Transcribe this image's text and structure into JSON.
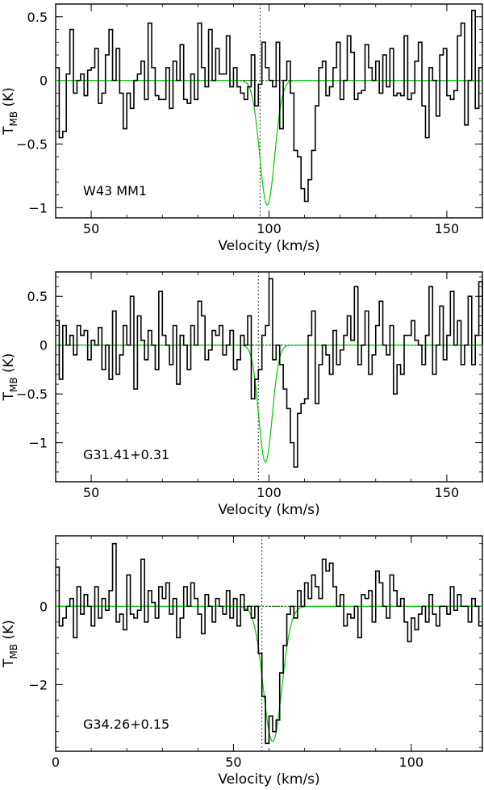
{
  "chart_data": [
    {
      "type": "line",
      "source": "W43 MM1",
      "xlabel": "Velocity (km/s)",
      "ylabel": "T_MB (K)",
      "ylabel_main": "T",
      "ylabel_sub": "MB",
      "ylabel_unit": "(K)",
      "xlim": [
        40,
        160
      ],
      "ylim": [
        -1.08,
        0.6
      ],
      "xticks": [
        50,
        100,
        150
      ],
      "yticks": [
        -1,
        -0.5,
        0,
        0.5
      ],
      "xtick_labels": [
        "50",
        "100",
        "150"
      ],
      "ytick_labels": [
        "−1",
        "−0.5",
        "0",
        "0.5"
      ],
      "vline": 97.5,
      "fit": {
        "amp": -0.98,
        "center": 99.5,
        "sigma": 2.1
      },
      "series": [
        {
          "name": "spectrum",
          "style": "steps",
          "x0": 40.5,
          "dx": 1.0,
          "values": [
            0.1,
            -0.45,
            -0.4,
            0.05,
            0.4,
            -0.1,
            0.0,
            0.05,
            -0.12,
            0.08,
            0.1,
            0.25,
            -0.18,
            -0.1,
            0.2,
            0.4,
            0.0,
            0.25,
            -0.1,
            -0.38,
            -0.1,
            -0.22,
            0.0,
            0.05,
            0.15,
            -0.15,
            0.45,
            0.1,
            -0.12,
            -0.15,
            -0.15,
            0.1,
            -0.22,
            0.15,
            0.0,
            0.28,
            -0.15,
            -0.18,
            0.05,
            -0.15,
            0.45,
            0.1,
            -0.05,
            0.4,
            0.0,
            0.25,
            0.05,
            0.05,
            0.35,
            -0.05,
            0.1,
            -0.05,
            -0.1,
            -0.15,
            -0.05,
            0.2,
            -0.2,
            -0.03,
            0.3,
            0.1,
            0.0,
            -0.05,
            0.3,
            -0.38,
            0.0,
            0.15,
            -0.1,
            -0.55,
            -0.6,
            -0.85,
            -0.95,
            -0.78,
            -0.55,
            -0.2,
            0.1,
            0.15,
            -0.12,
            -0.05,
            0.1,
            0.3,
            -0.15,
            0.0,
            0.35,
            0.22,
            -0.15,
            -0.1,
            -0.08,
            0.28,
            0.1,
            0.0,
            0.15,
            -0.1,
            0.2,
            -0.05,
            0.25,
            -0.12,
            -0.1,
            -0.12,
            0.35,
            -0.15,
            -0.1,
            0.15,
            0.3,
            -0.2,
            -0.45,
            0.1,
            0.0,
            -0.28,
            0.2,
            0.25,
            -0.12,
            -0.15,
            -0.08,
            0.35,
            0.45,
            -0.35,
            0.0,
            0.55,
            -0.22,
            0.1
          ]
        },
        {
          "name": "gaussian fit",
          "style": "smooth",
          "color": "#00cc00"
        },
        {
          "name": "baseline",
          "style": "dotted",
          "color": "#008800",
          "value": 0
        }
      ]
    },
    {
      "type": "line",
      "source": "G31.41+0.31",
      "xlabel": "Velocity (km/s)",
      "ylabel": "T_MB (K)",
      "ylabel_main": "T",
      "ylabel_sub": "MB",
      "ylabel_unit": "(K)",
      "xlim": [
        40,
        160
      ],
      "ylim": [
        -1.4,
        0.75
      ],
      "xticks": [
        50,
        100,
        150
      ],
      "yticks": [
        -1,
        -0.5,
        0,
        0.5
      ],
      "xtick_labels": [
        "50",
        "100",
        "150"
      ],
      "ytick_labels": [
        "−1",
        "−0.5",
        "0",
        "0.5"
      ],
      "vline": 97,
      "fit": {
        "amp": -1.2,
        "center": 99.0,
        "sigma": 1.9
      },
      "series": [
        {
          "name": "spectrum",
          "style": "steps",
          "x0": 40.5,
          "dx": 1.0,
          "values": [
            0.25,
            -0.35,
            0.2,
            0.0,
            0.1,
            -0.1,
            0.2,
            0.1,
            0.15,
            -0.15,
            0.05,
            0.0,
            0.18,
            -0.25,
            0.0,
            -0.35,
            0.35,
            -0.3,
            -0.1,
            0.2,
            0.0,
            0.5,
            -0.45,
            0.3,
            0.05,
            -0.15,
            0.15,
            0.0,
            -0.25,
            0.55,
            0.1,
            0.0,
            -0.2,
            0.2,
            -0.4,
            0.1,
            0.0,
            -0.25,
            0.2,
            0.0,
            0.45,
            0.3,
            -0.15,
            -0.05,
            0.15,
            0.1,
            0.2,
            -0.1,
            0.0,
            0.15,
            -0.25,
            -0.15,
            0.1,
            0.0,
            0.3,
            -0.55,
            -0.35,
            -0.25,
            0.1,
            0.2,
            0.68,
            -0.15,
            0.0,
            -0.2,
            -0.45,
            -0.65,
            -1.0,
            -1.25,
            -0.7,
            -0.6,
            -0.55,
            0.1,
            0.35,
            -0.6,
            -0.2,
            0.0,
            -0.1,
            -0.3,
            0.15,
            -0.2,
            -0.05,
            0.1,
            0.3,
            0.05,
            0.6,
            -0.2,
            0.0,
            0.35,
            -0.3,
            -0.1,
            0.2,
            0.45,
            0.0,
            -0.1,
            0.2,
            -0.5,
            -0.2,
            -0.3,
            0.1,
            0.1,
            0.25,
            0.05,
            0.0,
            -0.2,
            0.1,
            0.6,
            -0.3,
            0.0,
            0.4,
            -0.15,
            0.1,
            0.55,
            0.0,
            0.25,
            -0.2,
            0.0,
            0.5,
            -0.2,
            0.1,
            0.65,
            0.0
          ]
        },
        {
          "name": "gaussian fit",
          "style": "smooth",
          "color": "#00cc00"
        },
        {
          "name": "baseline",
          "style": "dotted",
          "color": "#008800",
          "value": 0
        }
      ]
    },
    {
      "type": "line",
      "source": "G34.26+0.15",
      "xlabel": "Velocity (km/s)",
      "ylabel": "T_MB (K)",
      "ylabel_main": "T",
      "ylabel_sub": "MB",
      "ylabel_unit": "(K)",
      "xlim": [
        0,
        120
      ],
      "ylim": [
        -3.7,
        1.8
      ],
      "xticks": [
        0,
        50,
        100
      ],
      "yticks": [
        -2,
        0
      ],
      "xtick_labels": [
        "0",
        "50",
        "100"
      ],
      "ytick_labels": [
        "−2",
        "0"
      ],
      "vline": 58,
      "fit": {
        "amp": -3.45,
        "center": 61.0,
        "sigma": 2.6
      },
      "series": [
        {
          "name": "spectrum",
          "style": "steps",
          "x0": 0.5,
          "dx": 1.0,
          "values": [
            1.0,
            -0.5,
            -0.3,
            0.0,
            0.2,
            -0.8,
            0.5,
            -0.2,
            0.3,
            0.0,
            -0.5,
            0.5,
            -0.3,
            0.2,
            -0.1,
            0.4,
            1.6,
            -0.4,
            -0.2,
            -0.6,
            0.8,
            -0.2,
            -0.3,
            -0.1,
            1.2,
            -0.4,
            0.4,
            0.1,
            -0.3,
            0.5,
            0.2,
            0.6,
            -0.2,
            0.2,
            -0.8,
            -0.3,
            0.5,
            0.0,
            0.6,
            0.2,
            -0.2,
            -0.7,
            0.3,
            0.0,
            -0.4,
            0.2,
            0.0,
            -0.2,
            0.4,
            -0.3,
            0.2,
            -0.5,
            0.3,
            -0.1,
            0.0,
            -0.3,
            0.0,
            -1.2,
            -2.3,
            -3.5,
            -2.8,
            -3.2,
            -2.9,
            -1.7,
            -1.0,
            -0.2,
            0.0,
            -0.3,
            0.4,
            0.0,
            0.6,
            0.2,
            0.8,
            0.5,
            0.2,
            1.2,
            0.9,
            1.1,
            0.5,
            0.0,
            0.3,
            -0.5,
            -0.2,
            -0.3,
            0.0,
            -0.8,
            0.3,
            0.2,
            0.4,
            -0.4,
            0.9,
            0.6,
            0.0,
            -0.3,
            0.8,
            0.4,
            0.0,
            0.2,
            -0.4,
            -0.9,
            -0.3,
            -0.6,
            -0.2,
            0.0,
            -0.4,
            0.3,
            -0.2,
            -0.5,
            0.0,
            0.0,
            -0.2,
            0.5,
            -0.1,
            0.3,
            0.0,
            0.0,
            -0.4,
            0.2,
            0.0,
            -0.5
          ]
        },
        {
          "name": "gaussian fit",
          "style": "smooth",
          "color": "#00cc00"
        },
        {
          "name": "baseline",
          "style": "dotted",
          "color": "#008800",
          "value": 0
        }
      ]
    }
  ]
}
